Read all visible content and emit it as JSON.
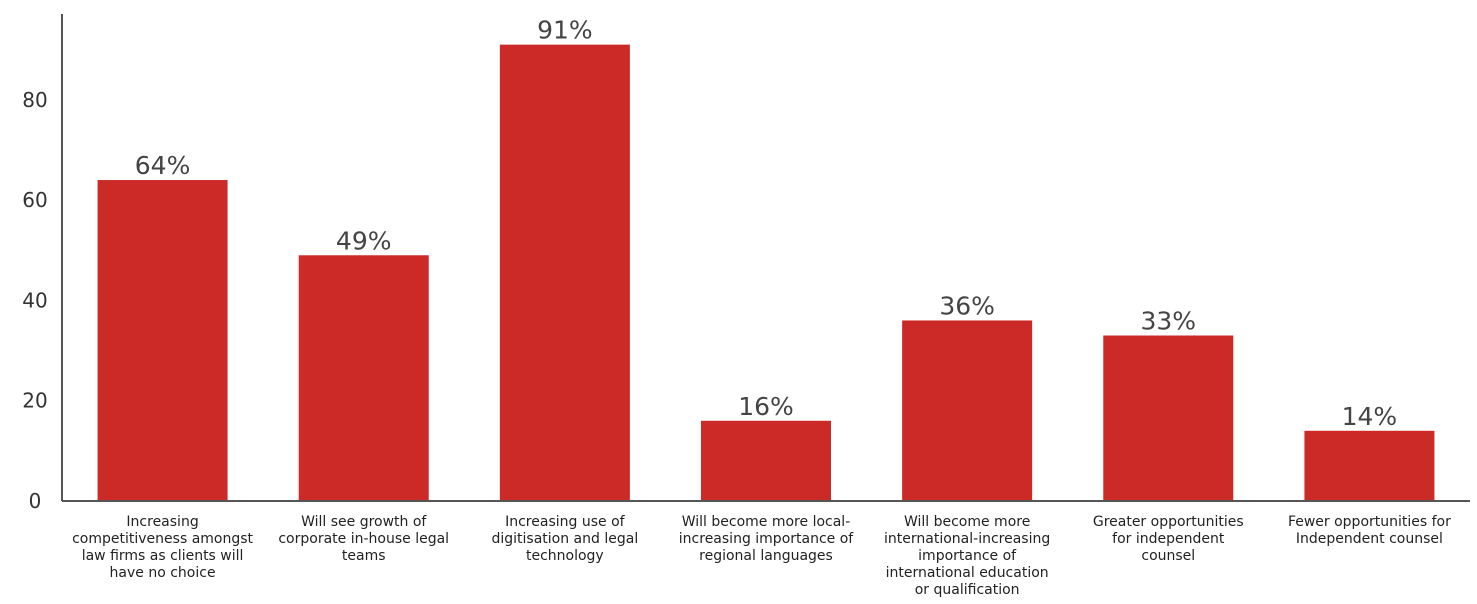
{
  "chart_data": {
    "type": "bar",
    "categories": [
      [
        "Increasing",
        "competitiveness amongst",
        "law firms as clients will",
        "have no choice"
      ],
      [
        "Will see growth of",
        "corporate in-house legal",
        "teams"
      ],
      [
        "Increasing use of",
        "digitisation and legal",
        "technology"
      ],
      [
        "Will become more local-",
        "increasing importance of",
        "regional languages"
      ],
      [
        "Will become more",
        "international-increasing",
        "importance of",
        "international education",
        "or qualification"
      ],
      [
        "Greater opportunities",
        "for independent",
        "counsel"
      ],
      [
        "Fewer opportunities for",
        "Independent counsel"
      ]
    ],
    "values": [
      64,
      49,
      91,
      16,
      36,
      33,
      14
    ],
    "data_labels": [
      "64%",
      "49%",
      "91%",
      "16%",
      "36%",
      "33%",
      "14%"
    ],
    "yticks": [
      0,
      20,
      40,
      60,
      80
    ],
    "ylim": [
      0,
      100
    ],
    "title": "",
    "xlabel": "",
    "ylabel": "",
    "grid": false,
    "bar_color": "#cc2a27"
  }
}
